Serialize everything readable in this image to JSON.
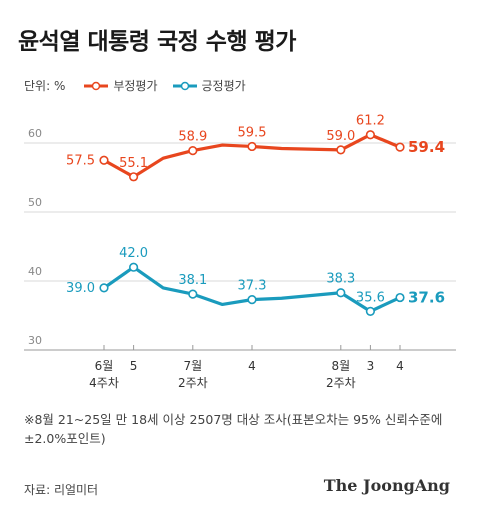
{
  "title": "윤석열 대통령 국정 수행 평가",
  "unit_label": "단위: %",
  "note": "※8월 21~25일 만 18세 이상 2507명 대상 조사(표본오차는 95% 신뢰수준에 ±2.0%포인트)",
  "source": "자료: 리얼미터",
  "brand": "The JoongAng",
  "chart_data": {
    "type": "line",
    "x": [
      0,
      1,
      2,
      3,
      4,
      5,
      6,
      7,
      8,
      9,
      10
    ],
    "x_tick_labels": [
      {
        "x": 0,
        "line1": "6월",
        "line2": "4주차"
      },
      {
        "x": 1,
        "line1": "5",
        "line2": ""
      },
      {
        "x": 3,
        "line1": "7월",
        "line2": "2주차"
      },
      {
        "x": 5,
        "line1": "4",
        "line2": ""
      },
      {
        "x": 8,
        "line1": "8월",
        "line2": "2주차"
      },
      {
        "x": 9,
        "line1": "3",
        "line2": ""
      },
      {
        "x": 10,
        "line1": "4",
        "line2": ""
      }
    ],
    "ylim": [
      30,
      65
    ],
    "y_ticks": [
      30,
      40,
      50,
      60
    ],
    "grid": true,
    "series": [
      {
        "name": "부정평가",
        "color": "#e8461e",
        "values": [
          57.5,
          55.1,
          57.8,
          58.9,
          59.7,
          59.5,
          59.2,
          59.0,
          61.2,
          59.4
        ],
        "x": [
          0,
          1,
          2,
          3,
          4,
          5,
          6,
          8,
          9,
          10
        ],
        "marker_indices": [
          0,
          1,
          3,
          5,
          7,
          8,
          9
        ],
        "labels": [
          {
            "i": 0,
            "text": "57.5"
          },
          {
            "i": 1,
            "text": "55.1"
          },
          {
            "i": 3,
            "text": "58.9"
          },
          {
            "i": 5,
            "text": "59.5"
          },
          {
            "i": 7,
            "text": "59.0"
          },
          {
            "i": 8,
            "text": "61.2"
          },
          {
            "i": 9,
            "text": "59.4"
          }
        ]
      },
      {
        "name": "긍정평가",
        "color": "#1a9bbd",
        "values": [
          39.0,
          42.0,
          39.0,
          38.1,
          36.6,
          37.3,
          37.5,
          38.3,
          35.6,
          37.6
        ],
        "x": [
          0,
          1,
          2,
          3,
          4,
          5,
          6,
          8,
          9,
          10
        ],
        "marker_indices": [
          0,
          1,
          3,
          5,
          7,
          8,
          9
        ],
        "labels": [
          {
            "i": 0,
            "text": "39.0"
          },
          {
            "i": 1,
            "text": "42.0"
          },
          {
            "i": 3,
            "text": "38.1"
          },
          {
            "i": 5,
            "text": "37.3"
          },
          {
            "i": 7,
            "text": "38.3"
          },
          {
            "i": 8,
            "text": "35.6"
          },
          {
            "i": 9,
            "text": "37.6"
          }
        ]
      }
    ]
  }
}
